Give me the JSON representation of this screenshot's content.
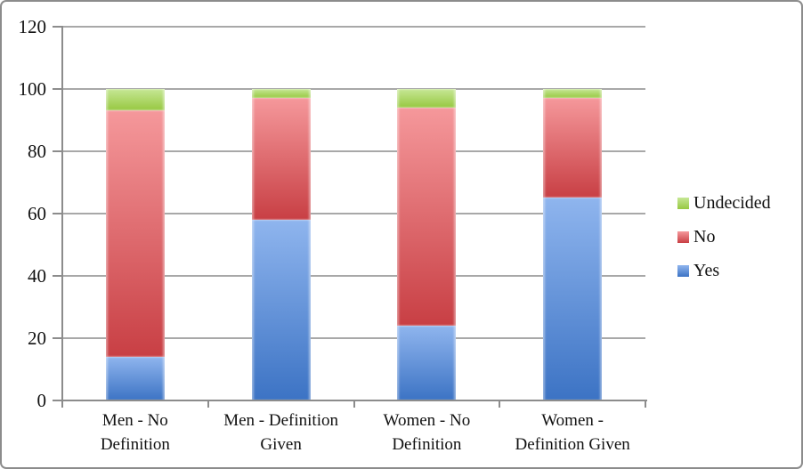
{
  "chart_data": {
    "type": "bar",
    "variant": "stacked-column",
    "title": "",
    "xlabel": "",
    "ylabel": "",
    "categories": [
      "Men - No Definition",
      "Men - Definition Given",
      "Women - No Definition",
      "Women - Definition Given"
    ],
    "category_label_lines": [
      [
        "Men - No",
        "Definition"
      ],
      [
        "Men - Definition",
        "Given"
      ],
      [
        "Women - No",
        "Definition"
      ],
      [
        "Women -",
        "Definition Given"
      ]
    ],
    "series": [
      {
        "name": "Yes",
        "values": [
          14,
          58,
          24,
          65
        ],
        "color": "#4F81BD",
        "gradient_top": "#8FB5EE",
        "gradient_bottom": "#3C73C4"
      },
      {
        "name": "No",
        "values": [
          79,
          39,
          70,
          32
        ],
        "color": "#C0504D",
        "gradient_top": "#F5989B",
        "gradient_bottom": "#C83F44"
      },
      {
        "name": "Undecided",
        "values": [
          7,
          3,
          6,
          3
        ],
        "color": "#9BBB59",
        "gradient_top": "#C6E795",
        "gradient_bottom": "#97C841"
      }
    ],
    "stack_totals": [
      100,
      100,
      100,
      100
    ],
    "ylim": [
      0,
      120
    ],
    "yticks": [
      0,
      20,
      40,
      60,
      80,
      100,
      120
    ],
    "grid": true,
    "legend_position": "right",
    "legend_order": [
      "Undecided",
      "No",
      "Yes"
    ]
  },
  "frame": {
    "background": "#ffffff",
    "border_color": "#8c8c8c",
    "axis_color": "#8c8c8c",
    "gridline_color": "#a8a8a8",
    "text_color": "#111111"
  }
}
